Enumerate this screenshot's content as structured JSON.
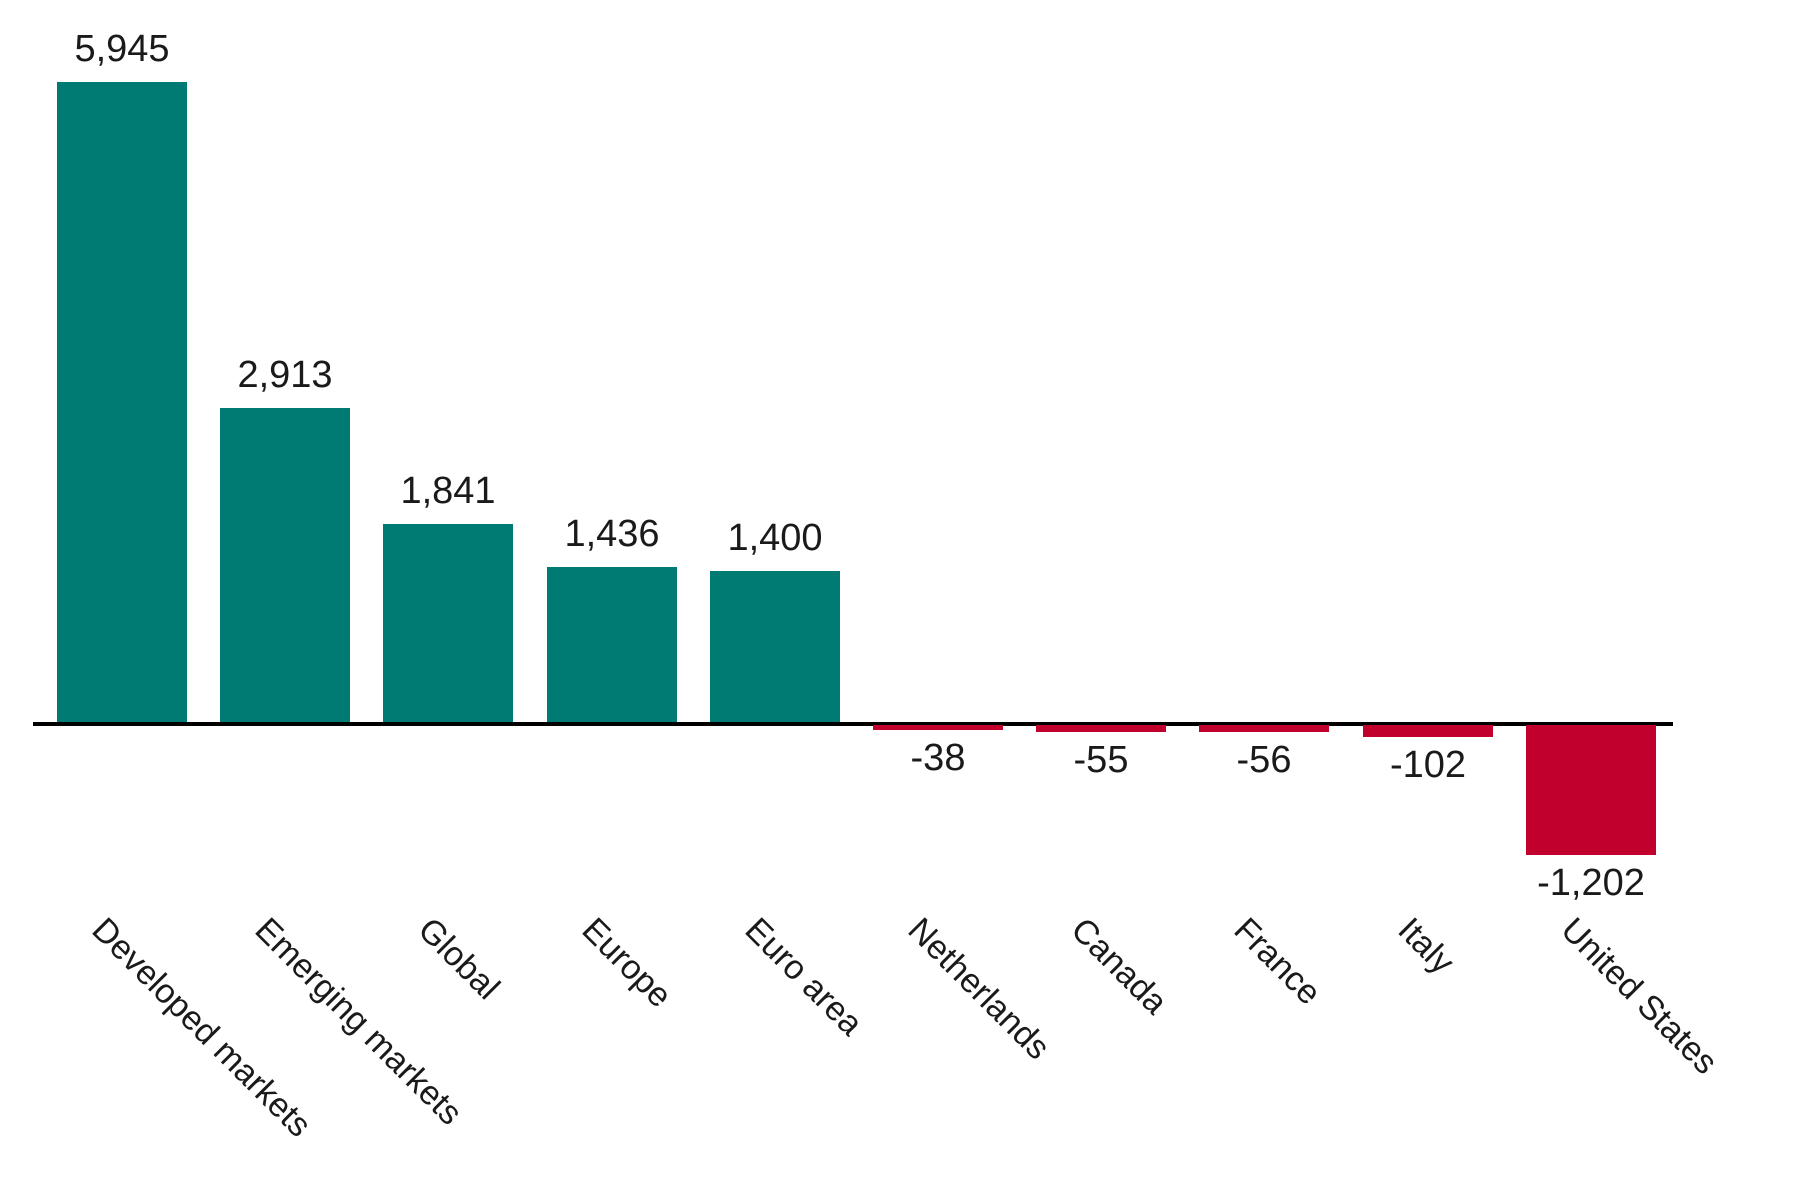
{
  "chart_data": {
    "type": "bar",
    "title": "",
    "xlabel": "",
    "ylabel": "",
    "grid": false,
    "legend": false,
    "baseline": 0,
    "x_tick_rotation_deg": 45,
    "categories": [
      "Developed markets",
      "Emerging markets",
      "Global",
      "Europe",
      "Euro area",
      "Netherlands",
      "Canada",
      "France",
      "Italy",
      "United States"
    ],
    "values": [
      5945,
      2913,
      1841,
      1436,
      1400,
      -38,
      -55,
      -56,
      -102,
      -1202
    ],
    "value_labels": [
      "5,945",
      "2,913",
      "1,841",
      "1,436",
      "1,400",
      "-38",
      "-55",
      "-56",
      "-102",
      "-1,202"
    ],
    "colors": {
      "positive_bar": "#007B73",
      "negative_bar": "#C2002E",
      "axis_line": "#000000",
      "label_text": "#1A1A1A",
      "background": "#FFFFFF"
    }
  }
}
